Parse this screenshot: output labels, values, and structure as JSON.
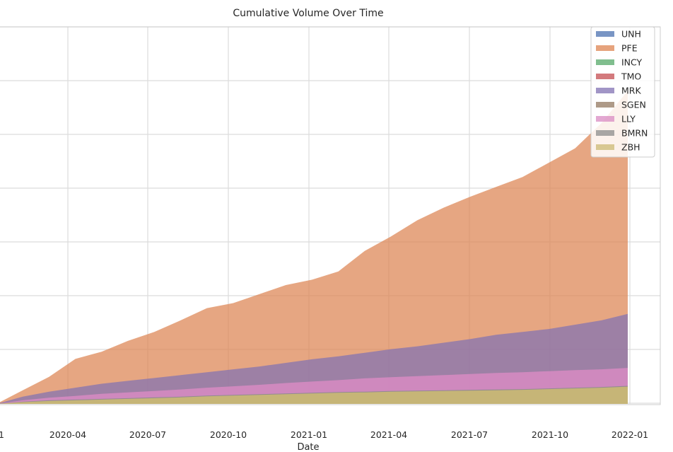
{
  "chart_data": {
    "type": "area",
    "stacked": true,
    "title": "Cumulative Volume Over Time",
    "xlabel": "Date",
    "ylabel": "",
    "grid": true,
    "legend_position": "top-right",
    "x_tick_labels": [
      "1",
      "2020-04",
      "2020-07",
      "2020-10",
      "2021-01",
      "2021-04",
      "2021-07",
      "2021-10",
      "2022-01"
    ],
    "x_tick_fraction": [
      0.0,
      0.1667,
      0.3333,
      0.5,
      0.6667,
      0.8333,
      1.0,
      1.1667,
      1.3333
    ],
    "x_range_months": [
      0,
      24
    ],
    "y_range_normalized": [
      0,
      1.0
    ],
    "colors": {
      "UNH": "#4c72b0",
      "PFE": "#dd8452",
      "INCY": "#55a868",
      "TMO": "#c44e52",
      "MRK": "#8172b3",
      "SGEN": "#937860",
      "LLY": "#da8bc3",
      "BMRN": "#8c8c8c",
      "ZBH": "#ccb974"
    },
    "legend": [
      "UNH",
      "PFE",
      "INCY",
      "TMO",
      "MRK",
      "SGEN",
      "LLY",
      "BMRN",
      "ZBH"
    ],
    "x_months": [
      0,
      1,
      2,
      3,
      4,
      5,
      6,
      7,
      8,
      9,
      10,
      11,
      12,
      13,
      14,
      15,
      16,
      17,
      18,
      19,
      20,
      21,
      22,
      23,
      24
    ],
    "series_cumulative_top": {
      "ZBH": [
        0,
        0.005,
        0.008,
        0.01,
        0.012,
        0.014,
        0.016,
        0.018,
        0.021,
        0.023,
        0.025,
        0.027,
        0.029,
        0.031,
        0.032,
        0.034,
        0.035,
        0.036,
        0.037,
        0.038,
        0.039,
        0.041,
        0.043,
        0.045,
        0.048
      ],
      "BMRN": [
        0,
        0.006,
        0.01,
        0.012,
        0.014,
        0.016,
        0.018,
        0.02,
        0.023,
        0.025,
        0.027,
        0.029,
        0.031,
        0.033,
        0.034,
        0.036,
        0.037,
        0.038,
        0.039,
        0.04,
        0.041,
        0.043,
        0.045,
        0.047,
        0.05
      ],
      "LLY": [
        0,
        0.01,
        0.017,
        0.022,
        0.028,
        0.032,
        0.036,
        0.04,
        0.045,
        0.049,
        0.053,
        0.058,
        0.062,
        0.066,
        0.071,
        0.074,
        0.077,
        0.08,
        0.083,
        0.086,
        0.088,
        0.091,
        0.094,
        0.096,
        0.1
      ],
      "SGEN": [
        0,
        0.01,
        0.017,
        0.022,
        0.028,
        0.032,
        0.036,
        0.04,
        0.045,
        0.049,
        0.053,
        0.058,
        0.062,
        0.066,
        0.071,
        0.074,
        0.077,
        0.08,
        0.083,
        0.086,
        0.088,
        0.091,
        0.094,
        0.096,
        0.1
      ],
      "MRK": [
        0,
        0.02,
        0.034,
        0.045,
        0.056,
        0.064,
        0.072,
        0.08,
        0.088,
        0.096,
        0.104,
        0.114,
        0.124,
        0.132,
        0.142,
        0.152,
        0.16,
        0.17,
        0.18,
        0.192,
        0.2,
        0.208,
        0.22,
        0.232,
        0.25
      ],
      "TMO": [
        0,
        0.02,
        0.034,
        0.045,
        0.056,
        0.064,
        0.072,
        0.08,
        0.088,
        0.096,
        0.104,
        0.114,
        0.124,
        0.132,
        0.142,
        0.152,
        0.16,
        0.17,
        0.18,
        0.192,
        0.2,
        0.208,
        0.22,
        0.232,
        0.25
      ],
      "INCY": [
        0,
        0.02,
        0.034,
        0.045,
        0.056,
        0.064,
        0.072,
        0.08,
        0.088,
        0.096,
        0.104,
        0.114,
        0.124,
        0.132,
        0.142,
        0.152,
        0.16,
        0.17,
        0.18,
        0.192,
        0.2,
        0.208,
        0.22,
        0.232,
        0.25
      ],
      "PFE": [
        0,
        0.038,
        0.075,
        0.125,
        0.145,
        0.175,
        0.2,
        0.232,
        0.266,
        0.28,
        0.305,
        0.33,
        0.345,
        0.368,
        0.425,
        0.465,
        0.51,
        0.545,
        0.575,
        0.603,
        0.63,
        0.67,
        0.71,
        0.78,
        0.87
      ],
      "UNH": [
        0,
        0.038,
        0.075,
        0.125,
        0.145,
        0.175,
        0.2,
        0.232,
        0.266,
        0.28,
        0.305,
        0.33,
        0.345,
        0.368,
        0.425,
        0.465,
        0.51,
        0.545,
        0.575,
        0.603,
        0.63,
        0.67,
        0.71,
        0.78,
        0.87
      ]
    }
  }
}
